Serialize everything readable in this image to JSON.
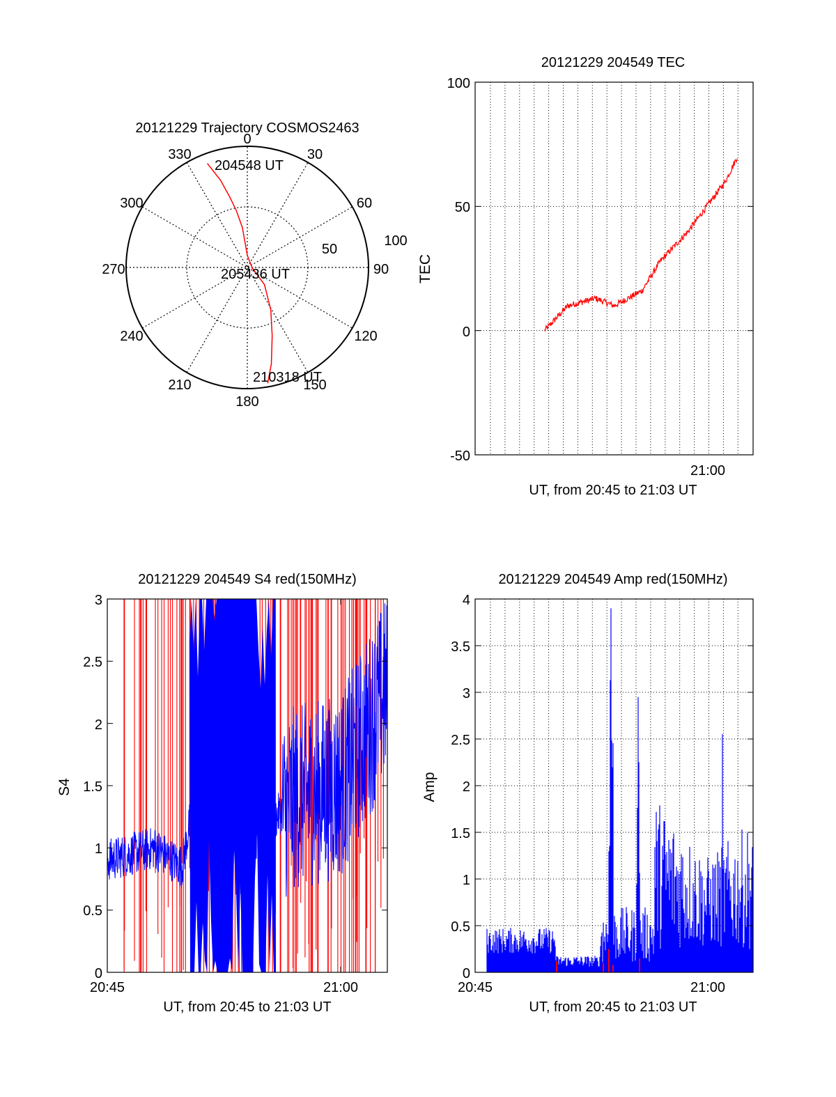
{
  "colors": {
    "red": "#ff0000",
    "blue": "#0000ff",
    "axis": "#000000",
    "grid": "#000000",
    "background": "#ffffff"
  },
  "chart_data": [
    {
      "type": "polar",
      "title": "20121229 Trajectory COSMOS2463",
      "azimuth_labels": [
        "0",
        "30",
        "60",
        "90",
        "120",
        "150",
        "180",
        "210",
        "240",
        "270",
        "300",
        "330"
      ],
      "radial_labels": [
        "50",
        "100"
      ],
      "track_label_start": "204548 UT",
      "track_label_mid": "205436 UT",
      "track_label_end": "210318 UT",
      "track": {
        "azimuth_deg": [
          339,
          343,
          346,
          349,
          353,
          0,
          95,
          135,
          151,
          160,
          166,
          170
        ],
        "zenith_deg": [
          92,
          75,
          60,
          48,
          33,
          10,
          4,
          20,
          40,
          60,
          82,
          97
        ],
        "color": "red"
      }
    },
    {
      "type": "line",
      "title": "20121229 204549 TEC",
      "ylabel": "TEC",
      "xlabel": "UT, from 20:45 to 21:03 UT",
      "xtick_labels": [
        "21:00"
      ],
      "ytick_labels": [
        "-50",
        "0",
        "50",
        "100"
      ],
      "ylim": [
        -50,
        100
      ],
      "grid": true,
      "series": [
        {
          "color": "red",
          "x": [
            20.825,
            20.85,
            20.88,
            20.9,
            20.93,
            20.95,
            20.98,
            21.0,
            21.02,
            21.033
          ],
          "y": [
            0,
            10,
            13,
            10,
            16,
            28,
            40,
            50,
            60,
            70
          ]
        }
      ]
    },
    {
      "type": "line",
      "title": "20121229 204549 S4 red(150MHz)",
      "ylabel": "S4",
      "xlabel": "UT, from 20:45 to 21:03 UT",
      "xtick_labels": [
        "20:45",
        "21:00"
      ],
      "ytick_labels": [
        "0",
        "0.5",
        "1",
        "1.5",
        "2",
        "2.5",
        "3"
      ],
      "ylim": [
        0,
        3
      ],
      "series": [
        {
          "color": "blue",
          "x": [
            20.75,
            20.8,
            20.83,
            20.87,
            20.9,
            20.95,
            21.0,
            21.05
          ],
          "y": [
            0.9,
            1.0,
            0.85,
            2.5,
            1.0,
            1.4,
            1.5,
            2.3
          ]
        },
        {
          "color": "red",
          "x": [
            20.75,
            20.8,
            20.9,
            21.0,
            21.05
          ],
          "y": [
            3.0,
            3.0,
            3.0,
            3.0,
            3.0
          ]
        }
      ]
    },
    {
      "type": "bar",
      "title": "20121229 204549 Amp red(150MHz)",
      "ylabel": "Amp",
      "xlabel": "UT, from 20:45 to 21:03 UT",
      "xtick_labels": [
        "20:45",
        "21:00"
      ],
      "ytick_labels": [
        "0",
        "0.5",
        "1",
        "1.5",
        "2",
        "2.5",
        "3",
        "3.5",
        "4"
      ],
      "ylim": [
        0,
        4
      ],
      "grid": true,
      "series": [
        {
          "color": "blue",
          "x": [
            20.75,
            20.8,
            20.85,
            20.9,
            20.95,
            21.0,
            21.05
          ],
          "y": [
            0.45,
            0.35,
            0.2,
            3.9,
            2.9,
            1.8,
            2.5
          ]
        },
        {
          "color": "red",
          "x": [
            20.9,
            20.93
          ],
          "y": [
            0.25,
            0.15
          ]
        }
      ]
    }
  ]
}
